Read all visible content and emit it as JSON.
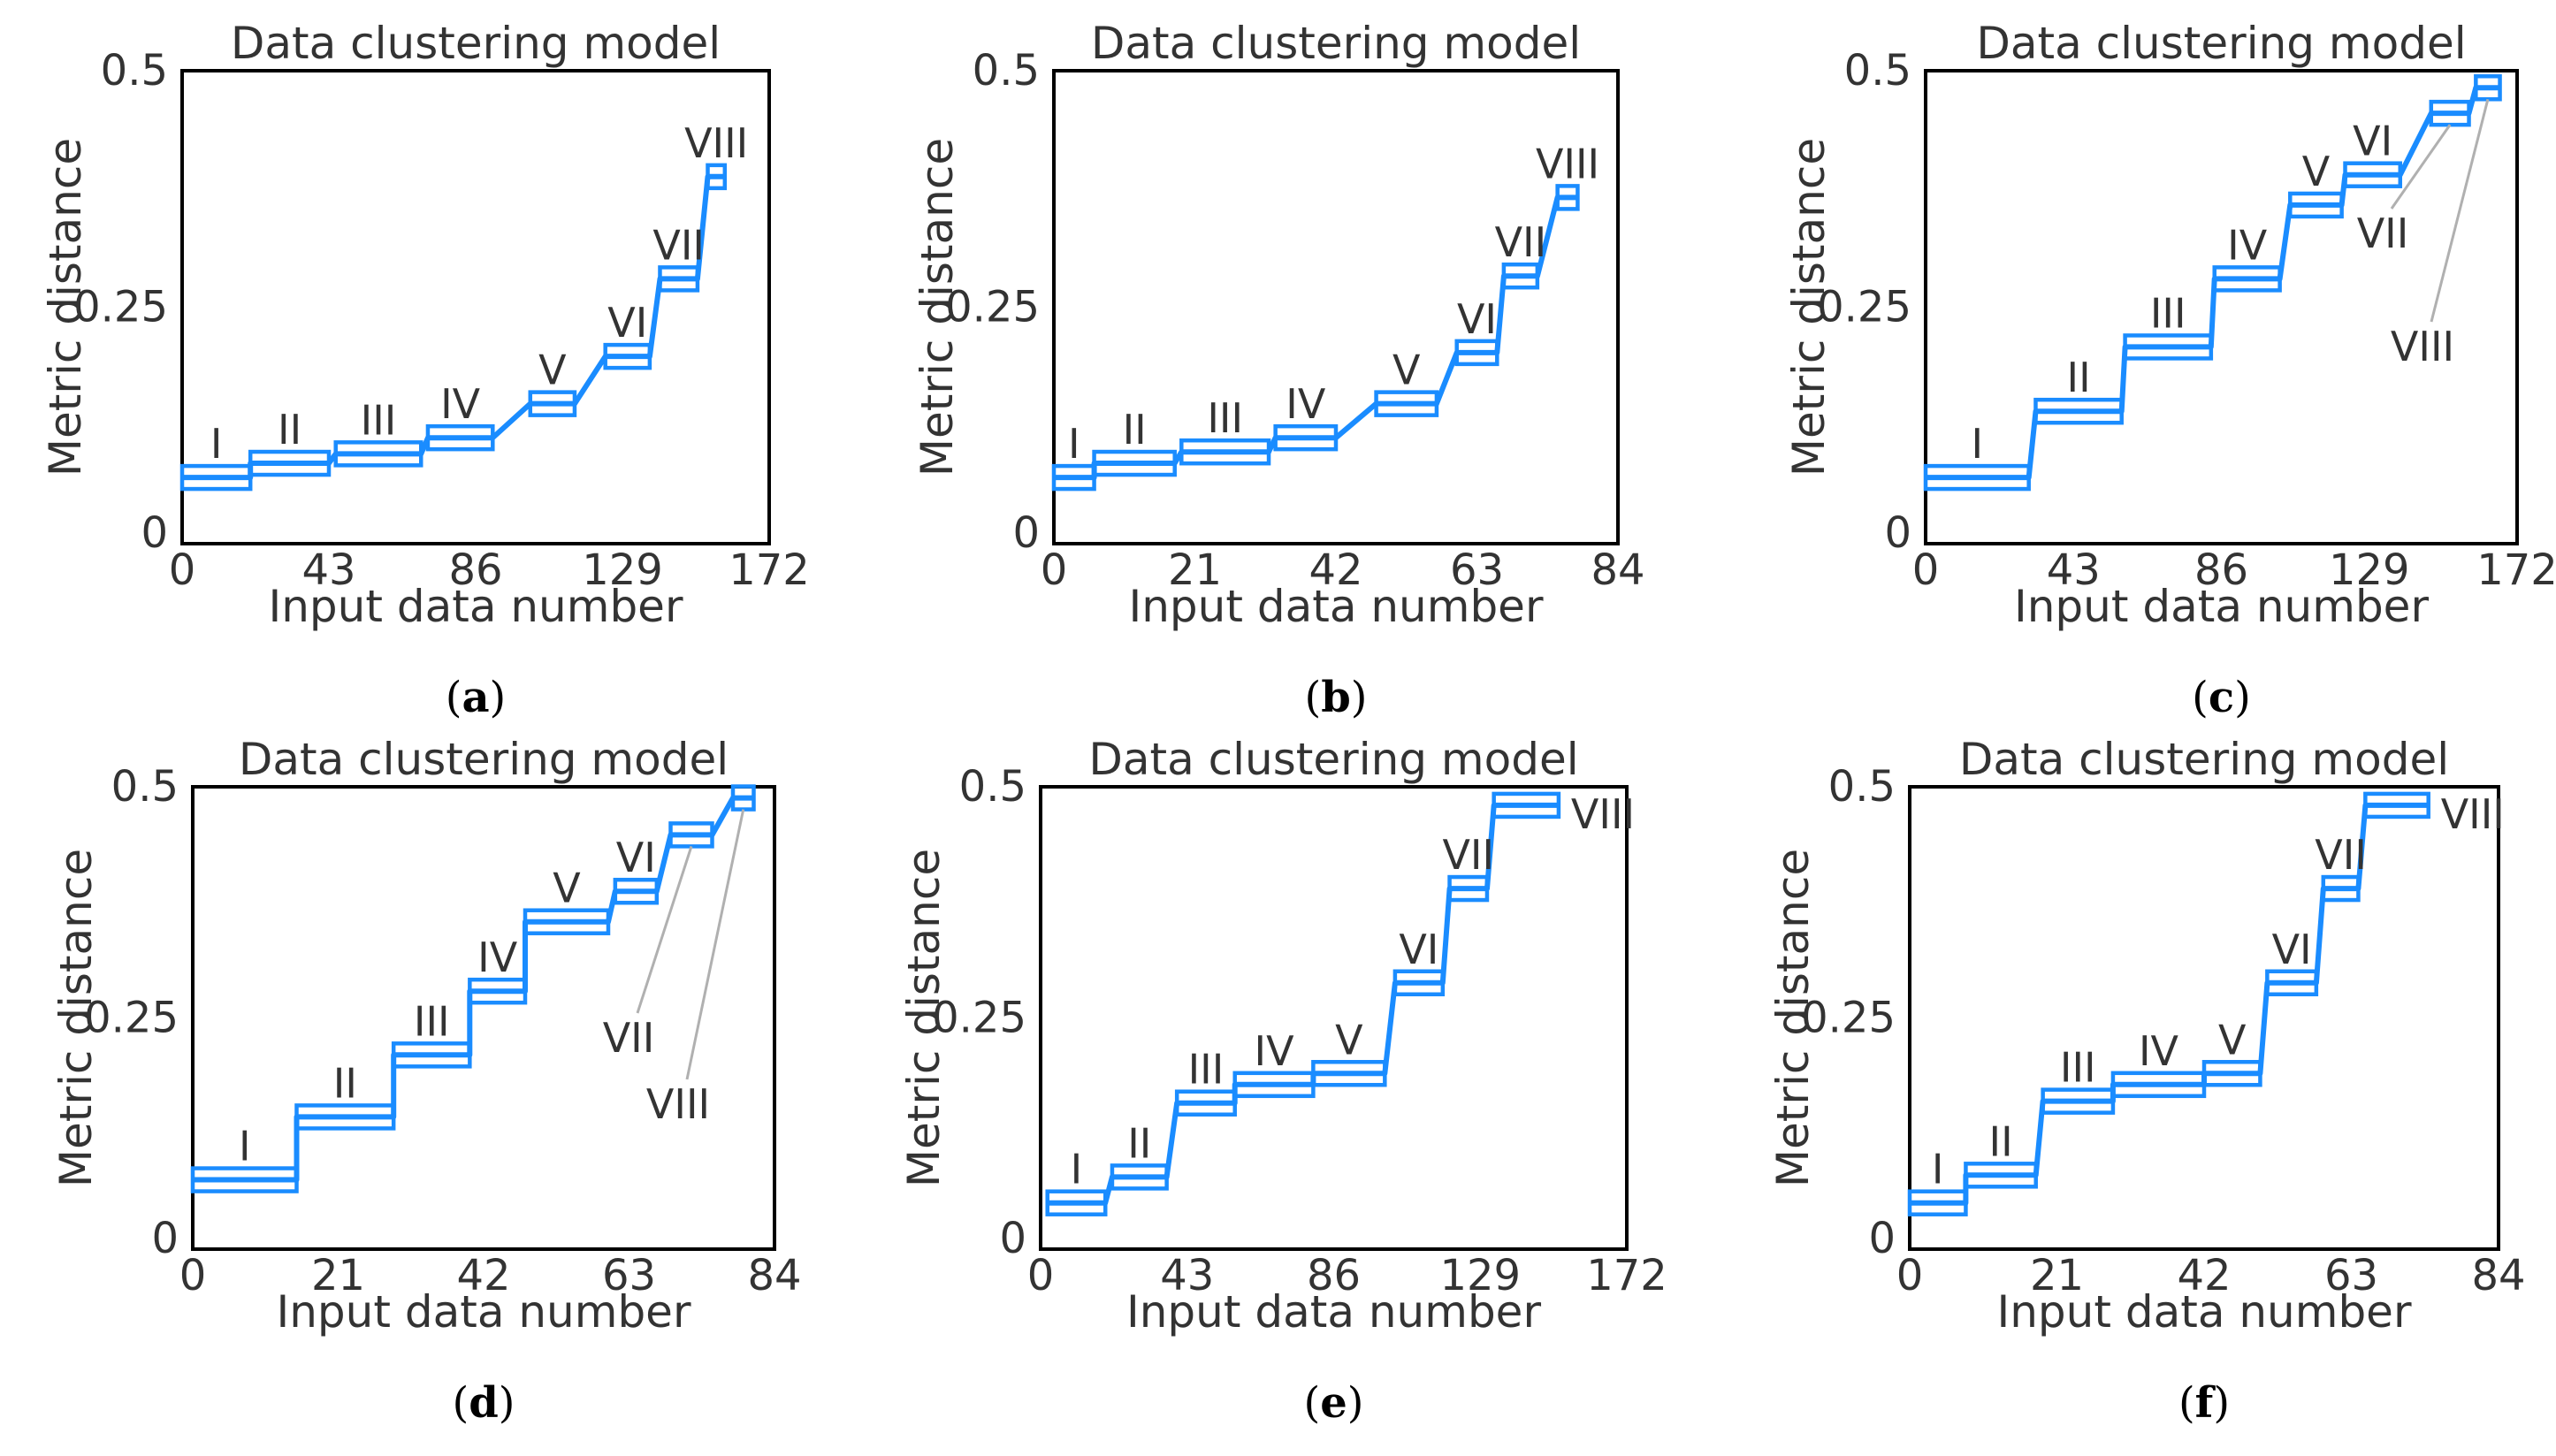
{
  "chart_data": [
    {
      "id": "a",
      "panel_label": "a",
      "type": "line",
      "title": "Data clustering model",
      "xlabel": "Input data number",
      "ylabel": "Metric distance",
      "xlim": [
        0,
        172
      ],
      "ylim": [
        0,
        0.5
      ],
      "xticks": [
        "0",
        "43",
        "86",
        "129",
        "172"
      ],
      "yticks": [
        "0",
        "0.25",
        "0.5"
      ],
      "clusters": [
        {
          "label": "I",
          "x": [
            0,
            20
          ],
          "y": 0.07
        },
        {
          "label": "II",
          "x": [
            20,
            43
          ],
          "y": 0.085
        },
        {
          "label": "III",
          "x": [
            45,
            70
          ],
          "y": 0.095
        },
        {
          "label": "IV",
          "x": [
            72,
            91
          ],
          "y": 0.112
        },
        {
          "label": "V",
          "x": [
            102,
            115
          ],
          "y": 0.148
        },
        {
          "label": "VI",
          "x": [
            124,
            137
          ],
          "y": 0.198
        },
        {
          "label": "VII",
          "x": [
            140,
            151
          ],
          "y": 0.28
        },
        {
          "label": "VIII",
          "x": [
            154,
            159
          ],
          "y": 0.388
        }
      ]
    },
    {
      "id": "b",
      "panel_label": "b",
      "type": "line",
      "title": "Data clustering model",
      "xlabel": "Input data number",
      "ylabel": "Metric distance",
      "xlim": [
        0,
        84
      ],
      "ylim": [
        0,
        0.5
      ],
      "xticks": [
        "0",
        "21",
        "42",
        "63",
        "84"
      ],
      "yticks": [
        "0",
        "0.25",
        "0.5"
      ],
      "clusters": [
        {
          "label": "I",
          "x": [
            0,
            6
          ],
          "y": 0.07
        },
        {
          "label": "II",
          "x": [
            6,
            18
          ],
          "y": 0.085
        },
        {
          "label": "III",
          "x": [
            19,
            32
          ],
          "y": 0.097
        },
        {
          "label": "IV",
          "x": [
            33,
            42
          ],
          "y": 0.112
        },
        {
          "label": "V",
          "x": [
            48,
            57
          ],
          "y": 0.148
        },
        {
          "label": "VI",
          "x": [
            60,
            66
          ],
          "y": 0.202
        },
        {
          "label": "VII",
          "x": [
            67,
            72
          ],
          "y": 0.283
        },
        {
          "label": "VIII",
          "x": [
            75,
            78
          ],
          "y": 0.366
        }
      ]
    },
    {
      "id": "c",
      "panel_label": "c",
      "type": "line",
      "title": "Data clustering model",
      "xlabel": "Input data number",
      "ylabel": "Metric distance",
      "xlim": [
        0,
        172
      ],
      "ylim": [
        0,
        0.5
      ],
      "xticks": [
        "0",
        "43",
        "86",
        "129",
        "172"
      ],
      "yticks": [
        "0",
        "0.25",
        "0.5"
      ],
      "clusters": [
        {
          "label": "I",
          "x": [
            0,
            30
          ],
          "y": 0.07
        },
        {
          "label": "II",
          "x": [
            32,
            57
          ],
          "y": 0.14
        },
        {
          "label": "III",
          "x": [
            58,
            83
          ],
          "y": 0.208
        },
        {
          "label": "IV",
          "x": [
            84,
            103
          ],
          "y": 0.28
        },
        {
          "label": "V",
          "x": [
            106,
            121
          ],
          "y": 0.358
        },
        {
          "label": "VI",
          "x": [
            122,
            138
          ],
          "y": 0.39
        },
        {
          "label": "VII",
          "x": [
            147,
            158
          ],
          "y": 0.455
        },
        {
          "label": "VIII",
          "x": [
            160,
            167
          ],
          "y": 0.482
        }
      ]
    },
    {
      "id": "d",
      "panel_label": "d",
      "type": "line",
      "title": "Data clustering model",
      "xlabel": "Input data number",
      "ylabel": "Metric distance",
      "xlim": [
        0,
        84
      ],
      "ylim": [
        0,
        0.5
      ],
      "xticks": [
        "0",
        "21",
        "42",
        "63",
        "84"
      ],
      "yticks": [
        "0",
        "0.25",
        "0.5"
      ],
      "clusters": [
        {
          "label": "I",
          "x": [
            0,
            15
          ],
          "y": 0.075
        },
        {
          "label": "II",
          "x": [
            15,
            29
          ],
          "y": 0.143
        },
        {
          "label": "III",
          "x": [
            29,
            40
          ],
          "y": 0.21
        },
        {
          "label": "IV",
          "x": [
            40,
            48
          ],
          "y": 0.279
        },
        {
          "label": "V",
          "x": [
            48,
            60
          ],
          "y": 0.354
        },
        {
          "label": "VI",
          "x": [
            61,
            67
          ],
          "y": 0.387
        },
        {
          "label": "VII",
          "x": [
            69,
            75
          ],
          "y": 0.448
        },
        {
          "label": "VIII",
          "x": [
            78,
            81
          ],
          "y": 0.488
        }
      ]
    },
    {
      "id": "e",
      "panel_label": "e",
      "type": "line",
      "title": "Data clustering model",
      "xlabel": "Input data number",
      "ylabel": "Metric distance",
      "xlim": [
        0,
        172
      ],
      "ylim": [
        0,
        0.5
      ],
      "xticks": [
        "0",
        "43",
        "86",
        "129",
        "172"
      ],
      "yticks": [
        "0",
        "0.25",
        "0.5"
      ],
      "clusters": [
        {
          "label": "I",
          "x": [
            2,
            19
          ],
          "y": 0.05
        },
        {
          "label": "II",
          "x": [
            21,
            37
          ],
          "y": 0.078
        },
        {
          "label": "III",
          "x": [
            40,
            57
          ],
          "y": 0.158
        },
        {
          "label": "IV",
          "x": [
            57,
            80
          ],
          "y": 0.178
        },
        {
          "label": "V",
          "x": [
            80,
            101
          ],
          "y": 0.19
        },
        {
          "label": "VI",
          "x": [
            104,
            118
          ],
          "y": 0.288
        },
        {
          "label": "VII",
          "x": [
            120,
            131
          ],
          "y": 0.39
        },
        {
          "label": "VIII",
          "x": [
            133,
            152
          ],
          "y": 0.48
        }
      ]
    },
    {
      "id": "f",
      "panel_label": "f",
      "type": "line",
      "title": "Data clustering model",
      "xlabel": "Input data number",
      "ylabel": "Metric distance",
      "xlim": [
        0,
        84
      ],
      "ylim": [
        0,
        0.5
      ],
      "xticks": [
        "0",
        "21",
        "42",
        "63",
        "84"
      ],
      "yticks": [
        "0",
        "0.25",
        "0.5"
      ],
      "clusters": [
        {
          "label": "I",
          "x": [
            0,
            8
          ],
          "y": 0.05
        },
        {
          "label": "II",
          "x": [
            8,
            18
          ],
          "y": 0.08
        },
        {
          "label": "III",
          "x": [
            19,
            29
          ],
          "y": 0.16
        },
        {
          "label": "IV",
          "x": [
            29,
            42
          ],
          "y": 0.178
        },
        {
          "label": "V",
          "x": [
            42,
            50
          ],
          "y": 0.19
        },
        {
          "label": "VI",
          "x": [
            51,
            58
          ],
          "y": 0.288
        },
        {
          "label": "VII",
          "x": [
            59,
            64
          ],
          "y": 0.39
        },
        {
          "label": "VIII",
          "x": [
            65,
            74
          ],
          "y": 0.48
        }
      ]
    }
  ]
}
